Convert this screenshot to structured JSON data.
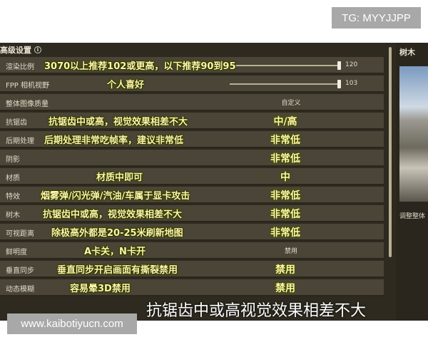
{
  "watermark_top": "TG: MYYJJPP",
  "watermark_bottom": "www.kaibotiyucn.com",
  "header": {
    "title": "高级设置",
    "info_icon": "info-icon"
  },
  "rows": [
    {
      "label": "渲染比例",
      "annotation": "3070以上推荐102或更高，以下推荐90到95",
      "slider_value": "120",
      "slider_fraction": 1.0
    },
    {
      "label": "FPP 相机视野",
      "annotation": "个人喜好",
      "slider_value": "103",
      "slider_fraction": 1.0
    },
    {
      "label": "整体图像质量",
      "value": "自定义"
    },
    {
      "label": "抗锯齿",
      "annotation": "抗锯齿中或高，视觉效果相差不大",
      "value_annotation": "中/高"
    },
    {
      "label": "后期处理",
      "annotation": "后期处理非常吃帧率，建议非常低",
      "value_annotation": "非常低"
    },
    {
      "label": "阴影",
      "value_annotation": "非常低"
    },
    {
      "label": "材质",
      "annotation": "材质中即可",
      "value_annotation": "中"
    },
    {
      "label": "特效",
      "annotation": "烟雾弹/闪光弹/汽油/车属于显卡攻击",
      "value_annotation": "非常低"
    },
    {
      "label": "树木",
      "annotation": "抗锯齿中或高，视觉效果相差不大",
      "value_annotation": "非常低"
    },
    {
      "label": "可视距离",
      "annotation": "除极高外都是20-25米刷新地图",
      "value_annotation": "非常低"
    },
    {
      "label": "鲜明度",
      "annotation": "A卡关，N卡开",
      "value": "禁用"
    },
    {
      "label": "垂直同步",
      "annotation": "垂直同步开启画面有撕裂禁用",
      "value_annotation": "禁用"
    },
    {
      "label": "动态模糊",
      "annotation": "容易晕3D禁用",
      "value_annotation": "禁用"
    }
  ],
  "side_panel": {
    "title": "树木",
    "description": "调整整体"
  },
  "subtitle": "抗锯齿中或高视觉效果相差不大"
}
